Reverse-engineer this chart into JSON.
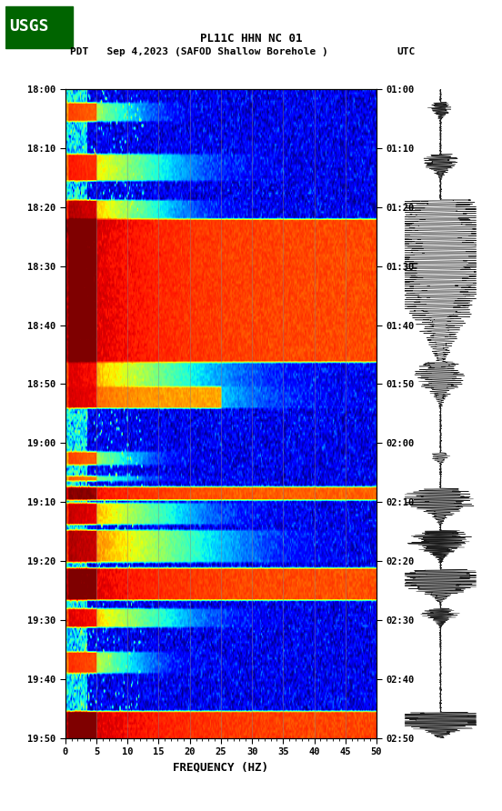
{
  "title_line1": "PL11C HHN NC 01",
  "title_line2": "(SAFOD Shallow Borehole )",
  "label_left": "PDT   Sep 4,2023",
  "label_right": "UTC",
  "freq_min": 0,
  "freq_max": 50,
  "freq_label": "FREQUENCY (HZ)",
  "time_left_labels": [
    "18:00",
    "18:10",
    "18:20",
    "18:30",
    "18:40",
    "18:50",
    "19:00",
    "19:10",
    "19:20",
    "19:30",
    "19:40",
    "19:50"
  ],
  "time_right_labels": [
    "01:00",
    "01:10",
    "01:20",
    "01:30",
    "01:40",
    "01:50",
    "02:00",
    "02:10",
    "02:20",
    "02:30",
    "02:40",
    "02:50"
  ],
  "freq_ticks": [
    0,
    5,
    10,
    15,
    20,
    25,
    30,
    35,
    40,
    45,
    50
  ],
  "bg_color": "#00008B",
  "spectrogram_cmap": "jet",
  "fig_width": 5.52,
  "fig_height": 8.92,
  "usgs_color": "#006400",
  "grid_color": "#888888",
  "grid_alpha": 0.6,
  "n_time_bins": 240,
  "n_freq_bins": 300
}
